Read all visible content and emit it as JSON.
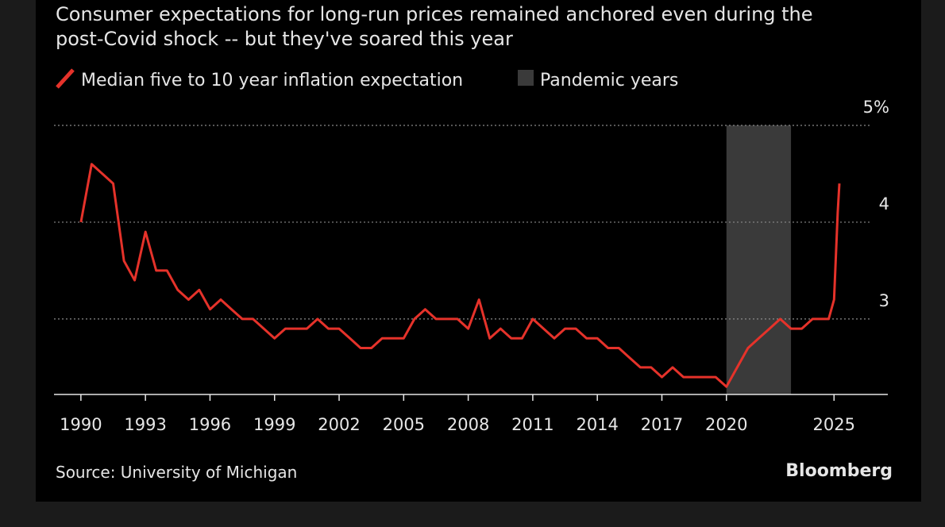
{
  "chart_data": {
    "type": "line",
    "title": [
      "Consumer expectations for long-run prices remained anchored even during the",
      "post-Covid shock -- but they've soared this year"
    ],
    "source": "Source: University of Michigan",
    "brand": "Bloomberg",
    "x": [
      1990.0,
      1990.5,
      1991.0,
      1991.5,
      1992.0,
      1992.5,
      1993.0,
      1993.5,
      1994.0,
      1994.5,
      1995.0,
      1995.5,
      1996.0,
      1996.5,
      1997.0,
      1997.5,
      1998.0,
      1998.5,
      1999.0,
      1999.5,
      2000.0,
      2000.5,
      2001.0,
      2001.5,
      2002.0,
      2002.5,
      2003.0,
      2003.5,
      2004.0,
      2004.5,
      2005.0,
      2005.5,
      2006.0,
      2006.5,
      2007.0,
      2007.5,
      2008.0,
      2008.5,
      2009.0,
      2009.5,
      2010.0,
      2010.5,
      2011.0,
      2011.5,
      2012.0,
      2012.5,
      2013.0,
      2013.5,
      2014.0,
      2014.5,
      2015.0,
      2015.5,
      2016.0,
      2016.5,
      2017.0,
      2017.5,
      2018.0,
      2018.5,
      2019.0,
      2019.5,
      2020.0,
      2020.5,
      2021.0,
      2021.5,
      2022.0,
      2022.5,
      2023.0,
      2023.5,
      2024.0,
      2024.5,
      2024.75,
      2025.0,
      2025.17,
      2025.25
    ],
    "series": [
      {
        "name": "Median five to 10 year inflation expectation",
        "color": "#e5322a",
        "values": [
          4.0,
          4.6,
          4.5,
          4.4,
          3.6,
          3.4,
          3.9,
          3.5,
          3.5,
          3.3,
          3.2,
          3.3,
          3.1,
          3.2,
          3.1,
          3.0,
          3.0,
          2.9,
          2.8,
          2.9,
          2.9,
          2.9,
          3.0,
          2.9,
          2.9,
          2.8,
          2.7,
          2.7,
          2.8,
          2.8,
          2.8,
          3.0,
          3.1,
          3.0,
          3.0,
          3.0,
          2.9,
          3.2,
          2.8,
          2.9,
          2.8,
          2.8,
          3.0,
          2.9,
          2.8,
          2.9,
          2.9,
          2.8,
          2.8,
          2.7,
          2.7,
          2.6,
          2.5,
          2.5,
          2.4,
          2.5,
          2.4,
          2.4,
          2.4,
          2.4,
          2.3,
          2.5,
          2.7,
          2.8,
          2.9,
          3.0,
          2.9,
          2.9,
          3.0,
          3.0,
          3.0,
          3.2,
          4.1,
          4.4
        ]
      }
    ],
    "shaded_region": {
      "name": "Pandemic years",
      "color": "#3a3a3a",
      "x": [
        2020,
        2023
      ]
    },
    "xlim": [
      1988.75,
      2027.5
    ],
    "xticks": [
      1990,
      1993,
      1996,
      1999,
      2002,
      2005,
      2008,
      2011,
      2014,
      2017,
      2020,
      2025
    ],
    "ylim": [
      2.22,
      5
    ],
    "yticks": [
      3,
      4,
      {
        "value": 5,
        "label": "5%"
      }
    ],
    "grid": true
  }
}
